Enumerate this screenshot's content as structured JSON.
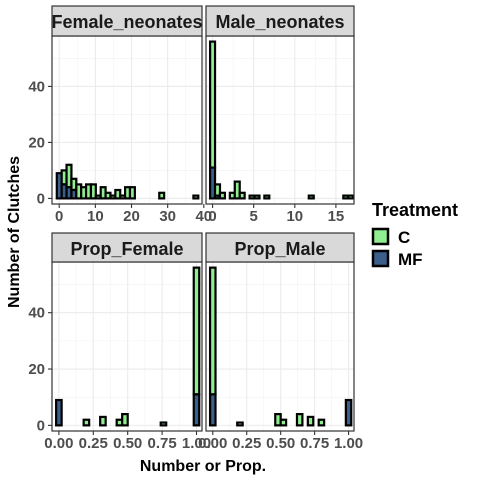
{
  "chart_data": {
    "type": "histogram-facets",
    "xlabel": "Number or Prop.",
    "ylabel": "Number of Clutches",
    "legend": {
      "title": "Treatment",
      "placement": "right",
      "entries": [
        {
          "name": "C",
          "color": "#90ee90"
        },
        {
          "name": "MF",
          "color": "#3a5f8a"
        }
      ]
    },
    "ylim": [
      -2,
      58
    ],
    "yticks": [
      0,
      20,
      40
    ],
    "grid": true,
    "panels": [
      {
        "title": "Female_neonates",
        "xlim": [
          -2,
          39.5
        ],
        "xticks": [
          0,
          10,
          20,
          30,
          40
        ],
        "xticklabels": [
          "0",
          "10",
          "20",
          "30",
          "40"
        ],
        "binwidth": 1.35,
        "bins": [
          {
            "x": 0,
            "total": 9,
            "mf": 9
          },
          {
            "x": 1.35,
            "total": 10,
            "mf": 5
          },
          {
            "x": 2.7,
            "total": 12,
            "mf": 4
          },
          {
            "x": 4.05,
            "total": 7,
            "mf": 3
          },
          {
            "x": 5.4,
            "total": 5,
            "mf": 0
          },
          {
            "x": 6.75,
            "total": 4,
            "mf": 0
          },
          {
            "x": 8.1,
            "total": 5,
            "mf": 0
          },
          {
            "x": 9.45,
            "total": 5,
            "mf": 0
          },
          {
            "x": 10.8,
            "total": 1,
            "mf": 0
          },
          {
            "x": 12.15,
            "total": 4,
            "mf": 0
          },
          {
            "x": 13.5,
            "total": 2,
            "mf": 0
          },
          {
            "x": 14.85,
            "total": 1,
            "mf": 0
          },
          {
            "x": 16.2,
            "total": 3,
            "mf": 0
          },
          {
            "x": 17.55,
            "total": 1,
            "mf": 0
          },
          {
            "x": 18.9,
            "total": 4,
            "mf": 0
          },
          {
            "x": 20.25,
            "total": 4,
            "mf": 0
          },
          {
            "x": 28.35,
            "total": 2,
            "mf": 0
          },
          {
            "x": 37.8,
            "total": 1,
            "mf": 0
          }
        ]
      },
      {
        "title": "Male_neonates",
        "xlim": [
          -0.8,
          17.2
        ],
        "xticks": [
          0,
          5,
          10,
          15
        ],
        "xticklabels": [
          "0",
          "5",
          "10",
          "15"
        ],
        "binwidth": 0.6,
        "bins": [
          {
            "x": 0,
            "total": 56,
            "mf": 11
          },
          {
            "x": 0.6,
            "total": 5,
            "mf": 1
          },
          {
            "x": 1.2,
            "total": 2,
            "mf": 0
          },
          {
            "x": 2.4,
            "total": 2,
            "mf": 0
          },
          {
            "x": 3.0,
            "total": 6,
            "mf": 0
          },
          {
            "x": 3.6,
            "total": 2,
            "mf": 0
          },
          {
            "x": 4.8,
            "total": 1,
            "mf": 0
          },
          {
            "x": 5.4,
            "total": 1,
            "mf": 0
          },
          {
            "x": 6.6,
            "total": 1,
            "mf": 0
          },
          {
            "x": 12.0,
            "total": 1,
            "mf": 0
          },
          {
            "x": 16.2,
            "total": 1,
            "mf": 0
          },
          {
            "x": 16.8,
            "total": 1,
            "mf": 0
          }
        ]
      },
      {
        "title": "Prop_Female",
        "xlim": [
          -0.05,
          1.04
        ],
        "xticks": [
          0,
          0.25,
          0.5,
          0.75,
          1
        ],
        "xticklabels": [
          "0.00",
          "0.25",
          "0.50",
          "0.75",
          "1.00"
        ],
        "binwidth": 0.04,
        "bins": [
          {
            "x": 0,
            "total": 9,
            "mf": 9
          },
          {
            "x": 0.2,
            "total": 2,
            "mf": 0
          },
          {
            "x": 0.32,
            "total": 3,
            "mf": 0
          },
          {
            "x": 0.44,
            "total": 2,
            "mf": 0
          },
          {
            "x": 0.48,
            "total": 4,
            "mf": 0
          },
          {
            "x": 0.76,
            "total": 1,
            "mf": 0
          },
          {
            "x": 1.0,
            "total": 56,
            "mf": 11
          }
        ]
      },
      {
        "title": "Prop_Male",
        "xlim": [
          -0.05,
          1.04
        ],
        "xticks": [
          0,
          0.25,
          0.5,
          0.75,
          1
        ],
        "xticklabels": [
          "0.00",
          "0.25",
          "0.50",
          "0.75",
          "1.00"
        ],
        "binwidth": 0.04,
        "bins": [
          {
            "x": 0,
            "total": 56,
            "mf": 11
          },
          {
            "x": 0.2,
            "total": 1,
            "mf": 0
          },
          {
            "x": 0.48,
            "total": 4,
            "mf": 0
          },
          {
            "x": 0.52,
            "total": 2,
            "mf": 0
          },
          {
            "x": 0.64,
            "total": 4,
            "mf": 0
          },
          {
            "x": 0.72,
            "total": 3,
            "mf": 0
          },
          {
            "x": 0.8,
            "total": 2,
            "mf": 0
          },
          {
            "x": 1.0,
            "total": 9,
            "mf": 9
          }
        ]
      }
    ]
  }
}
